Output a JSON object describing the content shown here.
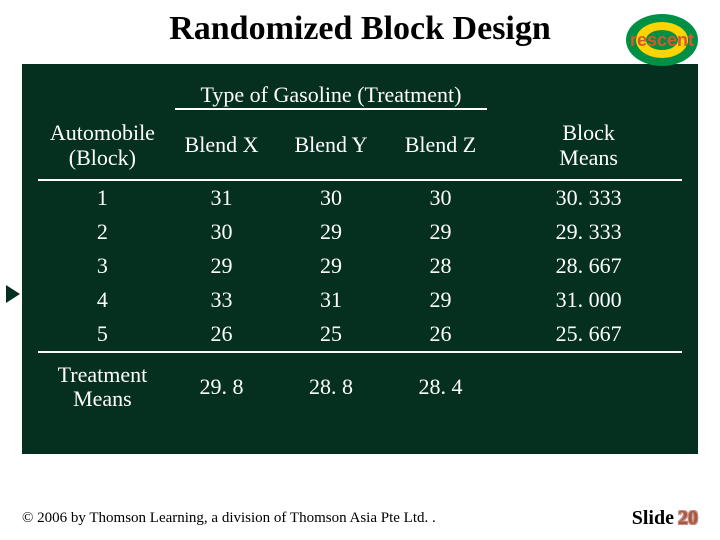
{
  "title": "Randomized Block Design",
  "logo_text": "rescent",
  "colors": {
    "panel_bg": "#053020",
    "panel_text": "#ffffff",
    "page_bg": "#ffffff",
    "logo_outer": "#009045",
    "logo_inner": "#ffd400",
    "logo_text_color": "#d8582a",
    "slide_num_color": "#a05a3c"
  },
  "table": {
    "block_header_line1": "Automobile",
    "block_header_line2": "(Block)",
    "treatment_super": "Type of Gasoline (Treatment)",
    "treatment_cols": [
      "Blend X",
      "Blend Y",
      "Blend Z"
    ],
    "means_header_line1": "Block",
    "means_header_line2": "Means",
    "rows": [
      {
        "block": "1",
        "x": "31",
        "y": "30",
        "z": "30",
        "mean": "30. 333"
      },
      {
        "block": "2",
        "x": "30",
        "y": "29",
        "z": "29",
        "mean": "29. 333"
      },
      {
        "block": "3",
        "x": "29",
        "y": "29",
        "z": "28",
        "mean": "28. 667"
      },
      {
        "block": "4",
        "x": "33",
        "y": "31",
        "z": "29",
        "mean": "31. 000"
      },
      {
        "block": "5",
        "x": "26",
        "y": "25",
        "z": "26",
        "mean": "25. 667"
      }
    ],
    "treatment_means_label_line1": "Treatment",
    "treatment_means_label_line2": "Means",
    "treatment_means": [
      "29. 8",
      "28. 8",
      "28. 4"
    ]
  },
  "footer": {
    "copyright": "© 2006 by Thomson Learning, a division of Thomson Asia Pte Ltd. .",
    "slide_label": "Slide",
    "slide_number": "20"
  }
}
